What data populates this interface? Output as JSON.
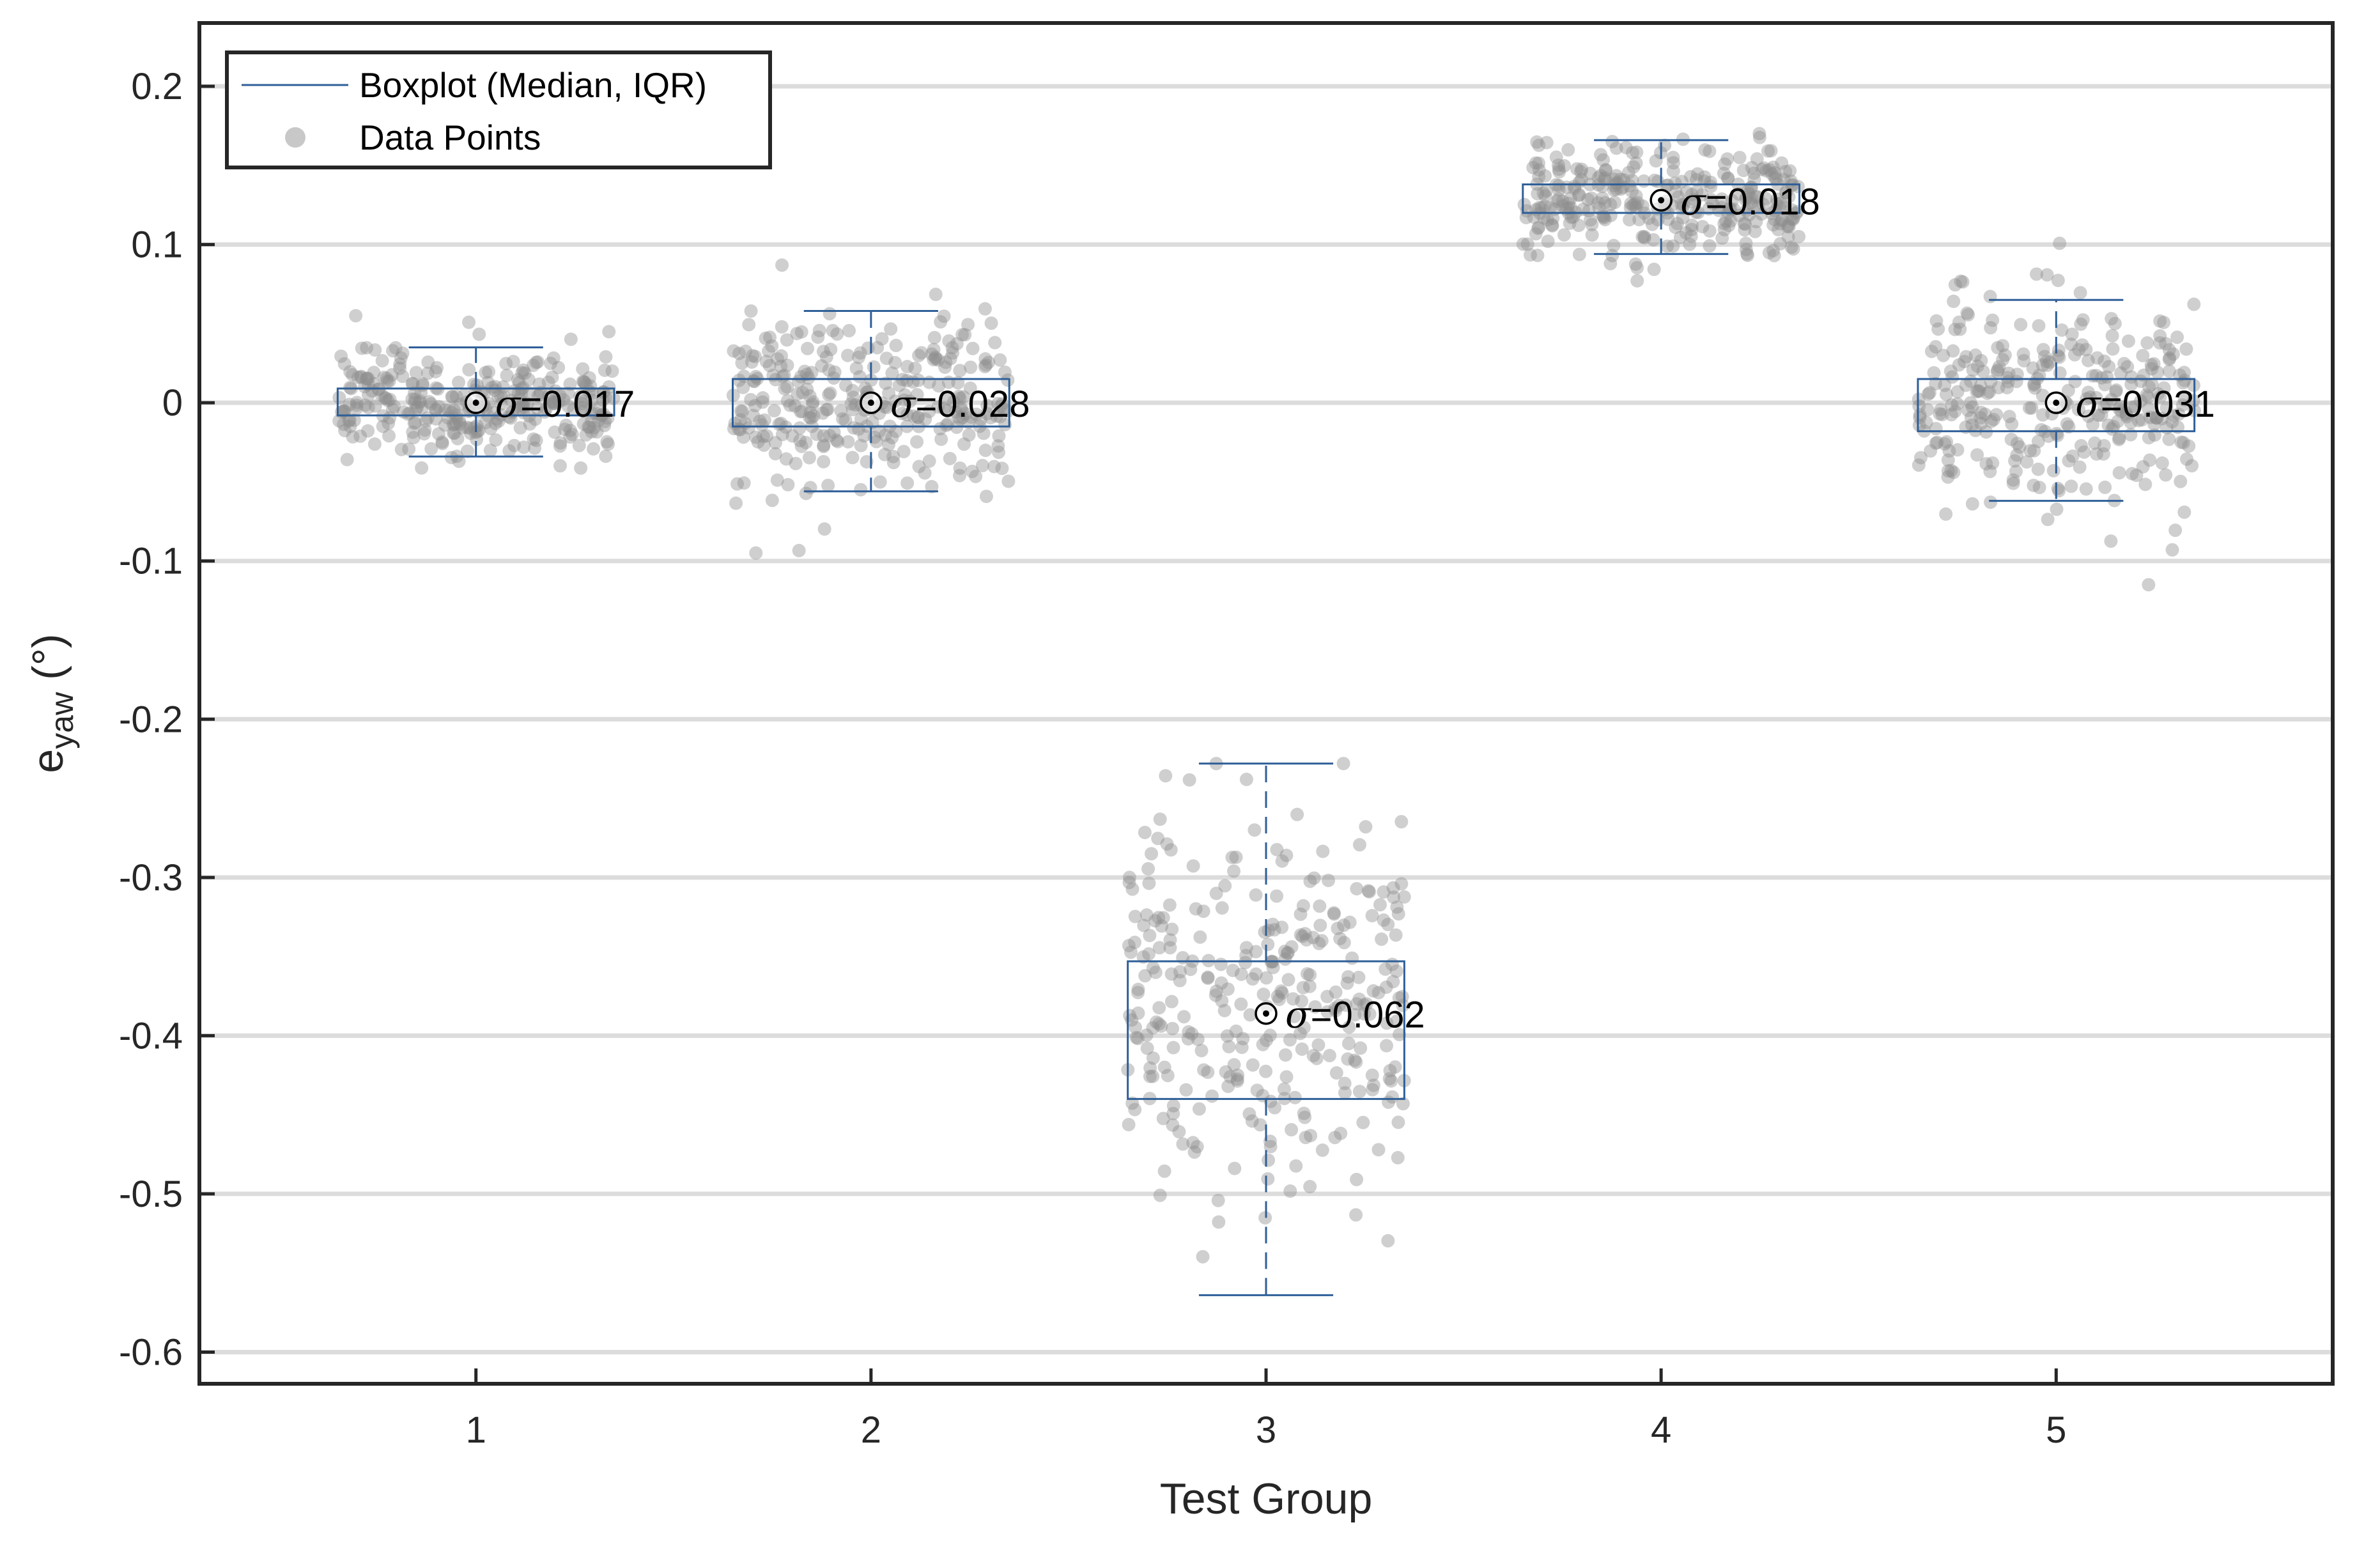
{
  "chart_data": {
    "type": "boxplot",
    "xlabel": "Test Group",
    "ylabel_main": "e",
    "ylabel_sub": "yaw",
    "ylabel_unit": " (°)",
    "categories": [
      "1",
      "2",
      "3",
      "4",
      "5"
    ],
    "x_ticks": [
      1,
      2,
      3,
      4,
      5
    ],
    "xlim": [
      0.3,
      5.7
    ],
    "ylim": [
      -0.62,
      0.24
    ],
    "y_ticks": [
      0.2,
      0.1,
      0,
      -0.1,
      -0.2,
      -0.3,
      -0.4,
      -0.5,
      -0.6
    ],
    "y_tick_labels": [
      "0.2",
      "0.1",
      "0",
      "-0.1",
      "-0.2",
      "-0.3",
      "-0.4",
      "-0.5",
      "-0.6"
    ],
    "grid": "horizontal",
    "legend": {
      "placement": "top-left",
      "entries": [
        {
          "label": "Boxplot (Median, IQR)",
          "marker": "line"
        },
        {
          "label": "Data Points",
          "marker": "dot"
        }
      ]
    },
    "groups": [
      {
        "x": 1,
        "median": 0.0,
        "q1": -0.008,
        "q3": 0.009,
        "whisker_low": -0.034,
        "whisker_high": 0.035,
        "std_label": "=0.017",
        "scatter_sd": 0.017,
        "scatter_min": -0.085,
        "scatter_max": 0.055
      },
      {
        "x": 2,
        "median": 0.0,
        "q1": -0.015,
        "q3": 0.015,
        "whisker_low": -0.056,
        "whisker_high": 0.058,
        "std_label": "=0.028",
        "scatter_sd": 0.028,
        "scatter_min": -0.132,
        "scatter_max": 0.087
      },
      {
        "x": 3,
        "median": -0.386,
        "q1": -0.44,
        "q3": -0.353,
        "whisker_low": -0.564,
        "whisker_high": -0.228,
        "std_label": "=0.062",
        "scatter_sd": 0.062,
        "scatter_min": -0.58,
        "scatter_max": -0.228
      },
      {
        "x": 4,
        "median": 0.128,
        "q1": 0.12,
        "q3": 0.138,
        "whisker_low": 0.094,
        "whisker_high": 0.166,
        "std_label": "=0.018",
        "scatter_sd": 0.018,
        "scatter_min": 0.06,
        "scatter_max": 0.2
      },
      {
        "x": 5,
        "median": 0.0,
        "q1": -0.018,
        "q3": 0.015,
        "whisker_low": -0.062,
        "whisker_high": 0.065,
        "std_label": "=0.031",
        "scatter_sd": 0.031,
        "scatter_min": -0.115,
        "scatter_max": 0.113
      }
    ],
    "sigma_symbol": "σ",
    "colors": {
      "box": "#2f5f98",
      "points": "#8c8c8c",
      "grid": "#dcdcdc",
      "axis": "#262626",
      "median_marker": "#000000"
    }
  }
}
